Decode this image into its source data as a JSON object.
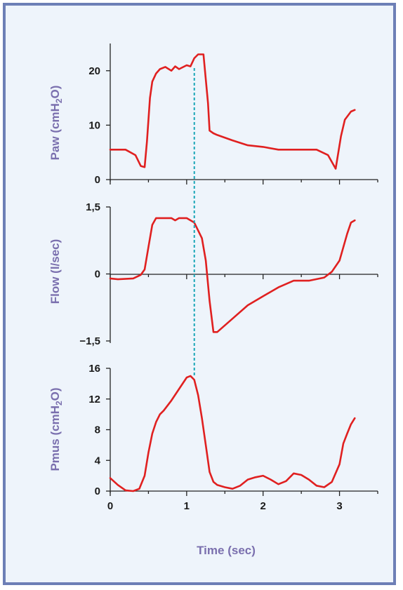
{
  "chart_data": [
    {
      "type": "line",
      "panel": "Paw",
      "ylabel": "Paw (cmH2O)",
      "ylim": [
        0,
        25
      ],
      "yticks": [
        0,
        10,
        20
      ],
      "ytick_labels": [
        "0",
        "10",
        "20"
      ],
      "xlim": [
        0,
        3.5
      ],
      "series": [
        {
          "x": [
            0,
            0.05,
            0.2,
            0.33,
            0.4,
            0.45,
            0.48,
            0.52,
            0.55,
            0.6,
            0.65,
            0.72,
            0.8,
            0.85,
            0.9,
            1.0,
            1.05,
            1.1,
            1.15,
            1.22,
            1.28,
            1.3,
            1.35,
            1.4,
            1.6,
            1.8,
            2.0,
            2.2,
            2.4,
            2.7,
            2.85,
            2.95,
            3.02,
            3.07,
            3.15,
            3.2
          ],
          "values": [
            5.5,
            5.5,
            5.5,
            4.5,
            2.5,
            2.3,
            7,
            15,
            18,
            19.5,
            20.3,
            20.7,
            20,
            20.8,
            20.3,
            21,
            20.8,
            22.3,
            23,
            23,
            14,
            9,
            8.5,
            8.2,
            7.2,
            6.3,
            6,
            5.5,
            5.5,
            5.5,
            4.5,
            2,
            8,
            11,
            12.5,
            12.8
          ]
        }
      ]
    },
    {
      "type": "line",
      "panel": "Flow",
      "ylabel": "Flow (l/sec)",
      "ylim": [
        -1.5,
        1.5
      ],
      "yticks": [
        -1.5,
        0,
        1.5
      ],
      "ytick_labels": [
        "−1,5",
        "0",
        "1,5"
      ],
      "xlim": [
        0,
        3.5
      ],
      "series": [
        {
          "x": [
            0,
            0.1,
            0.3,
            0.4,
            0.45,
            0.5,
            0.55,
            0.6,
            0.7,
            0.8,
            0.85,
            0.9,
            1.0,
            1.1,
            1.2,
            1.25,
            1.3,
            1.35,
            1.4,
            1.6,
            1.8,
            2.0,
            2.2,
            2.4,
            2.6,
            2.8,
            2.9,
            3.0,
            3.1,
            3.15,
            3.2
          ],
          "values": [
            -0.1,
            -0.12,
            -0.1,
            -0.02,
            0.1,
            0.6,
            1.1,
            1.25,
            1.25,
            1.25,
            1.2,
            1.25,
            1.25,
            1.15,
            0.8,
            0.3,
            -0.6,
            -1.3,
            -1.3,
            -1.0,
            -0.7,
            -0.5,
            -0.3,
            -0.15,
            -0.15,
            -0.08,
            0.05,
            0.3,
            0.9,
            1.15,
            1.2
          ]
        }
      ]
    },
    {
      "type": "line",
      "panel": "Pmus",
      "ylabel": "Pmus (cmH2O)",
      "xlabel": "Time (sec)",
      "ylim": [
        0,
        16
      ],
      "yticks": [
        0,
        4,
        8,
        12,
        16
      ],
      "ytick_labels": [
        "0",
        "4",
        "8",
        "12",
        "16"
      ],
      "xlim": [
        0,
        3.5
      ],
      "xticks": [
        0,
        1,
        2,
        3
      ],
      "xtick_labels": [
        "0",
        "1",
        "2",
        "3"
      ],
      "series": [
        {
          "x": [
            0,
            0.1,
            0.2,
            0.3,
            0.38,
            0.45,
            0.5,
            0.55,
            0.6,
            0.65,
            0.7,
            0.8,
            0.9,
            1.0,
            1.05,
            1.1,
            1.15,
            1.2,
            1.25,
            1.3,
            1.35,
            1.4,
            1.5,
            1.6,
            1.7,
            1.8,
            1.9,
            2.0,
            2.1,
            2.2,
            2.3,
            2.4,
            2.5,
            2.6,
            2.7,
            2.8,
            2.9,
            3.0,
            3.05,
            3.1,
            3.15,
            3.2
          ],
          "values": [
            1.7,
            0.8,
            0.1,
            0,
            0.3,
            2,
            5,
            7.5,
            9,
            10,
            10.5,
            11.8,
            13.3,
            14.8,
            15,
            14.5,
            12.5,
            9.5,
            6,
            2.5,
            1.2,
            0.8,
            0.5,
            0.3,
            0.7,
            1.5,
            1.8,
            2,
            1.5,
            0.9,
            1.3,
            2.3,
            2.1,
            1.5,
            0.7,
            0.5,
            1.2,
            3.5,
            6.2,
            7.5,
            8.7,
            9.5
          ]
        }
      ]
    }
  ],
  "marker_time": 1.1
}
